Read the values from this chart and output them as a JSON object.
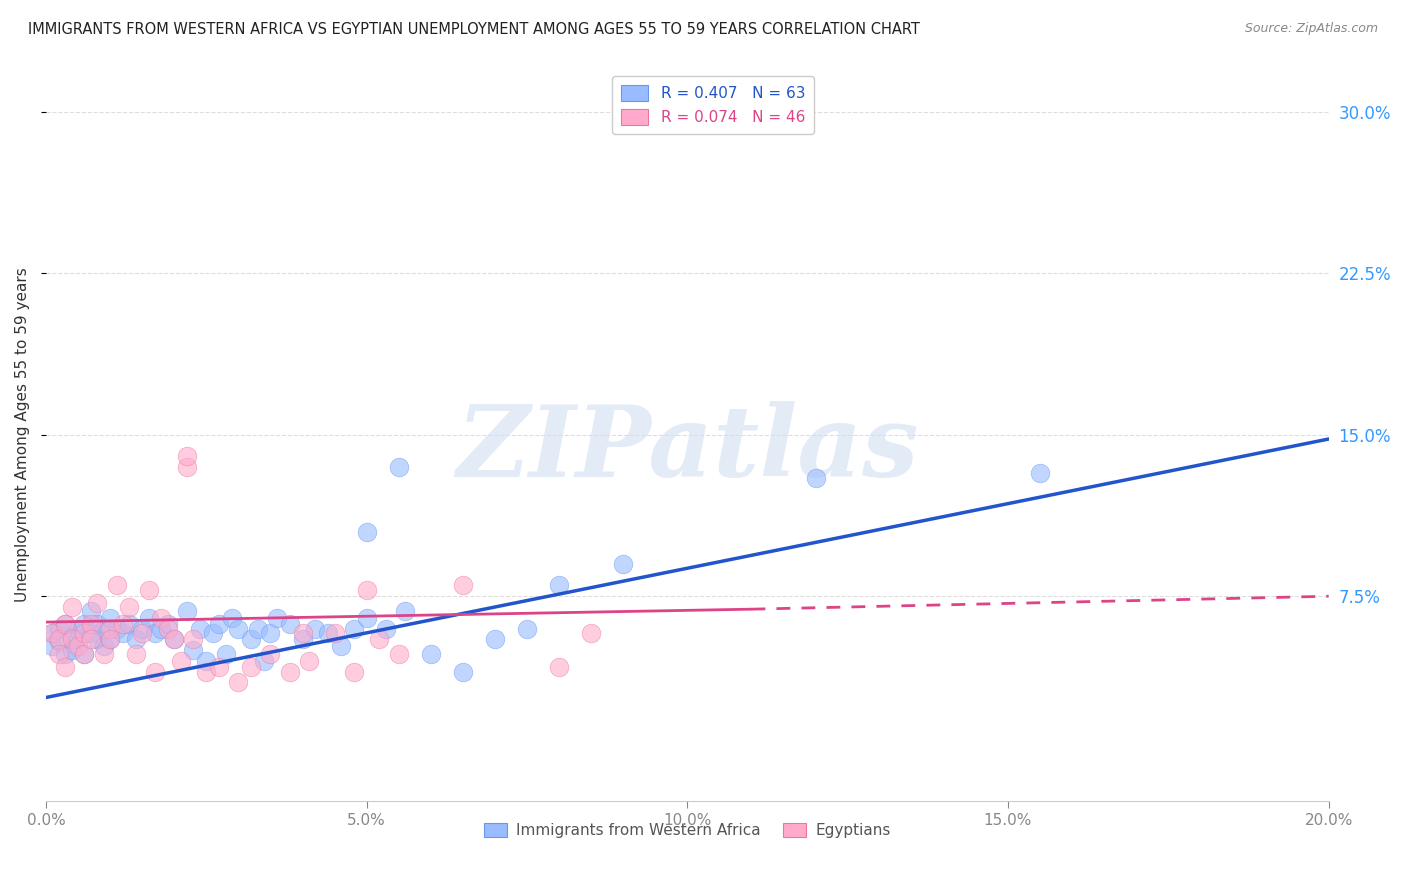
{
  "title": "IMMIGRANTS FROM WESTERN AFRICA VS EGYPTIAN UNEMPLOYMENT AMONG AGES 55 TO 59 YEARS CORRELATION CHART",
  "source": "Source: ZipAtlas.com",
  "ylabel": "Unemployment Among Ages 55 to 59 years",
  "xlim": [
    0.0,
    0.2
  ],
  "ylim": [
    -0.02,
    0.32
  ],
  "ylim_data": [
    0.0,
    0.3
  ],
  "xticks": [
    0.0,
    0.05,
    0.1,
    0.15,
    0.2
  ],
  "xticklabels": [
    "0.0%",
    "5.0%",
    "10.0%",
    "15.0%",
    "20.0%"
  ],
  "yticks_right": [
    0.075,
    0.15,
    0.225,
    0.3
  ],
  "yticklabels_right": [
    "7.5%",
    "15.0%",
    "22.5%",
    "30.0%"
  ],
  "blue_color": "#99BBFF",
  "blue_edge_color": "#6699EE",
  "pink_color": "#FFAACC",
  "pink_edge_color": "#EE7799",
  "blue_line_color": "#2255CC",
  "pink_line_color": "#DD4488",
  "blue_label": "Immigrants from Western Africa",
  "pink_label": "Egyptians",
  "blue_R": 0.407,
  "blue_N": 63,
  "pink_R": 0.074,
  "pink_N": 46,
  "watermark": "ZIPatlas",
  "grid_color": "#DDDDDD",
  "tick_color": "#888888",
  "right_tick_color": "#3399FF",
  "blue_scatter_x": [
    0.001,
    0.001,
    0.002,
    0.002,
    0.003,
    0.003,
    0.004,
    0.004,
    0.005,
    0.005,
    0.006,
    0.006,
    0.007,
    0.007,
    0.008,
    0.008,
    0.009,
    0.009,
    0.01,
    0.01,
    0.011,
    0.012,
    0.013,
    0.014,
    0.015,
    0.016,
    0.017,
    0.018,
    0.019,
    0.02,
    0.022,
    0.023,
    0.024,
    0.025,
    0.026,
    0.027,
    0.028,
    0.029,
    0.03,
    0.032,
    0.033,
    0.034,
    0.035,
    0.036,
    0.038,
    0.04,
    0.042,
    0.044,
    0.046,
    0.048,
    0.05,
    0.053,
    0.056,
    0.06,
    0.065,
    0.07,
    0.05,
    0.075,
    0.08,
    0.09,
    0.055,
    0.12,
    0.155
  ],
  "blue_scatter_y": [
    0.058,
    0.052,
    0.06,
    0.054,
    0.048,
    0.062,
    0.056,
    0.05,
    0.06,
    0.055,
    0.062,
    0.048,
    0.058,
    0.068,
    0.055,
    0.062,
    0.052,
    0.06,
    0.055,
    0.065,
    0.06,
    0.058,
    0.062,
    0.055,
    0.06,
    0.065,
    0.058,
    0.06,
    0.062,
    0.055,
    0.068,
    0.05,
    0.06,
    0.045,
    0.058,
    0.062,
    0.048,
    0.065,
    0.06,
    0.055,
    0.06,
    0.045,
    0.058,
    0.065,
    0.062,
    0.055,
    0.06,
    0.058,
    0.052,
    0.06,
    0.065,
    0.06,
    0.068,
    0.048,
    0.04,
    0.055,
    0.105,
    0.06,
    0.08,
    0.09,
    0.135,
    0.13,
    0.132
  ],
  "pink_scatter_x": [
    0.001,
    0.002,
    0.002,
    0.003,
    0.003,
    0.004,
    0.004,
    0.005,
    0.006,
    0.006,
    0.007,
    0.007,
    0.008,
    0.009,
    0.01,
    0.01,
    0.011,
    0.012,
    0.013,
    0.014,
    0.015,
    0.016,
    0.017,
    0.018,
    0.019,
    0.02,
    0.021,
    0.023,
    0.025,
    0.027,
    0.03,
    0.032,
    0.035,
    0.038,
    0.041,
    0.045,
    0.048,
    0.052,
    0.022,
    0.022,
    0.04,
    0.05,
    0.055,
    0.065,
    0.08,
    0.085
  ],
  "pink_scatter_y": [
    0.058,
    0.055,
    0.048,
    0.062,
    0.042,
    0.055,
    0.07,
    0.052,
    0.058,
    0.048,
    0.062,
    0.055,
    0.072,
    0.048,
    0.06,
    0.055,
    0.08,
    0.062,
    0.07,
    0.048,
    0.058,
    0.078,
    0.04,
    0.065,
    0.06,
    0.055,
    0.045,
    0.055,
    0.04,
    0.042,
    0.035,
    0.042,
    0.048,
    0.04,
    0.045,
    0.058,
    0.04,
    0.055,
    0.135,
    0.14,
    0.058,
    0.078,
    0.048,
    0.08,
    0.042,
    0.058
  ],
  "blue_line_x0": 0.0,
  "blue_line_y0": 0.028,
  "blue_line_x1": 0.2,
  "blue_line_y1": 0.148,
  "pink_line_x0": 0.0,
  "pink_line_y0": 0.063,
  "pink_line_x1": 0.2,
  "pink_line_y1": 0.075,
  "pink_line_x1_solid": 0.11,
  "pink_line_y1_solid": 0.069
}
